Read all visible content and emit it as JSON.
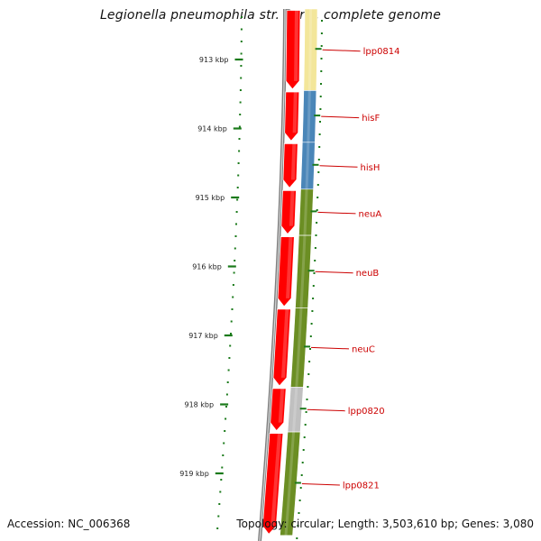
{
  "header": {
    "title": "Legionella pneumophila str. Paris, complete genome"
  },
  "footer": {
    "accession": "Accession: NC_006368",
    "topology": "Topology: circular; Length: 3,503,610 bp; Genes: 3,080"
  },
  "colors": {
    "forward_genes": "#ff0000",
    "backbone": "#7f7f7f",
    "tick_marks": "#1a7a1a",
    "gene_label": "#cc0000",
    "cog_yellow": "#f3e69a",
    "cog_blue": "#4a86b8",
    "cog_green": "#6b8e23",
    "cog_gray": "#c0c0c0"
  },
  "scale": {
    "unit": "kbp",
    "labels": [
      "913 kbp",
      "914 kbp",
      "915 kbp",
      "916 kbp",
      "917 kbp",
      "918 kbp",
      "919 kbp"
    ]
  },
  "genes": [
    {
      "name": "lpp0814",
      "start_kbp": 912.2,
      "end_kbp": 913.45,
      "cog": "yellow"
    },
    {
      "name": "hisF",
      "start_kbp": 913.45,
      "end_kbp": 914.2,
      "cog": "blue"
    },
    {
      "name": "hisH",
      "start_kbp": 914.2,
      "end_kbp": 914.88,
      "cog": "blue"
    },
    {
      "name": "neuA",
      "start_kbp": 914.88,
      "end_kbp": 915.55,
      "cog": "green"
    },
    {
      "name": "neuB",
      "start_kbp": 915.55,
      "end_kbp": 916.6,
      "cog": "green"
    },
    {
      "name": "neuC",
      "start_kbp": 916.6,
      "end_kbp": 917.75,
      "cog": "green"
    },
    {
      "name": "lpp0820",
      "start_kbp": 917.75,
      "end_kbp": 918.4,
      "cog": "gray"
    },
    {
      "name": "lpp0821",
      "start_kbp": 918.4,
      "end_kbp": 919.9,
      "cog": "green"
    }
  ]
}
